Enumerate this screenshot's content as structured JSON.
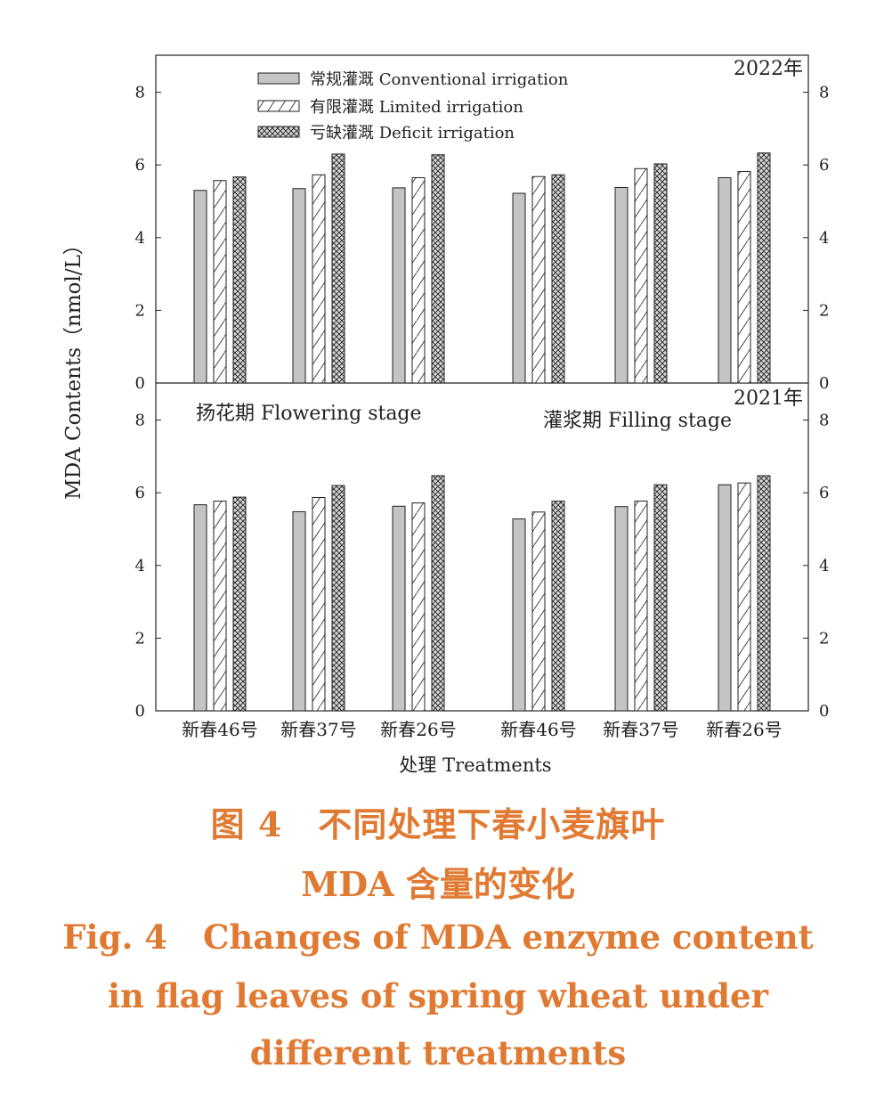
{
  "caption": {
    "cn_label": "图 4",
    "cn_title_line1": "不同处理下春小麦旗叶",
    "cn_title_line2": "MDA 含量的变化",
    "en_label": "Fig. 4",
    "en_title_line1": "Changes of MDA enzyme content",
    "en_title_line2": "in flag leaves of spring wheat under",
    "en_title_line3": "different treatments"
  },
  "chart_data": {
    "type": "bar",
    "ylabel": "MDA Contents（nmol/L）",
    "xlabel": "处理 Treatments",
    "ylim": [
      0,
      9
    ],
    "yticks": [
      0,
      2,
      4,
      6,
      8
    ],
    "stage_labels": [
      "扬花期  Flowering stage",
      "灌浆期  Filling stage"
    ],
    "categories": [
      "新春46号",
      "新春37号",
      "新春26号",
      "新春46号",
      "新春37号",
      "新春26号"
    ],
    "legend": {
      "placement": "top-left",
      "entries": [
        {
          "name": "常规灌溉  Conventional irrigation",
          "pattern": "solid-gray"
        },
        {
          "name": "有限灌溉  Limited irrigation",
          "pattern": "diagonal-hatch"
        },
        {
          "name": "亏缺灌溉  Deficit irrigation",
          "pattern": "cross-hatch"
        }
      ]
    },
    "panels": [
      {
        "year_label": "2022年",
        "series": [
          {
            "name": "常规灌溉  Conventional irrigation",
            "values": [
              5.3,
              5.35,
              5.37,
              5.22,
              5.38,
              5.65
            ]
          },
          {
            "name": "有限灌溉  Limited irrigation",
            "values": [
              5.57,
              5.73,
              5.65,
              5.68,
              5.9,
              5.82
            ]
          },
          {
            "name": "亏缺灌溉  Deficit irrigation",
            "values": [
              5.67,
              6.3,
              6.28,
              5.73,
              6.03,
              6.33
            ]
          }
        ]
      },
      {
        "year_label": "2021年",
        "series": [
          {
            "name": "常规灌溉  Conventional irrigation",
            "values": [
              5.67,
              5.48,
              5.63,
              5.28,
              5.62,
              6.22
            ]
          },
          {
            "name": "有限灌溉  Limited irrigation",
            "values": [
              5.77,
              5.87,
              5.72,
              5.47,
              5.77,
              6.27
            ]
          },
          {
            "name": "亏缺灌溉  Deficit irrigation",
            "values": [
              5.88,
              6.2,
              6.47,
              5.77,
              6.22,
              6.47
            ]
          }
        ]
      }
    ],
    "colors": {
      "bar_fill": "#c4c4c4",
      "bar_stroke": "#222222",
      "axis": "#222222"
    }
  }
}
